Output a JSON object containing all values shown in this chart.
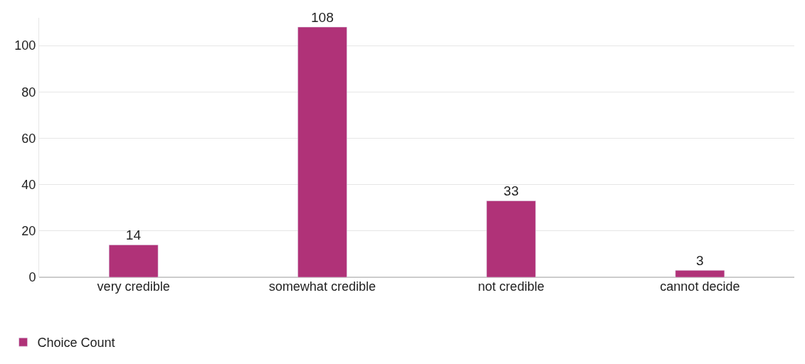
{
  "chart_data": {
    "type": "bar",
    "categories": [
      "very credible",
      "somewhat credible",
      "not credible",
      "cannot decide"
    ],
    "series": [
      {
        "name": "Choice Count",
        "color": "#b03278",
        "values": [
          14,
          108,
          33,
          3
        ]
      }
    ],
    "ylim": [
      0,
      112
    ],
    "yticks": [
      0,
      20,
      40,
      60,
      80,
      100
    ],
    "grid": "y",
    "data_labels": true,
    "legend": "bottom left"
  }
}
